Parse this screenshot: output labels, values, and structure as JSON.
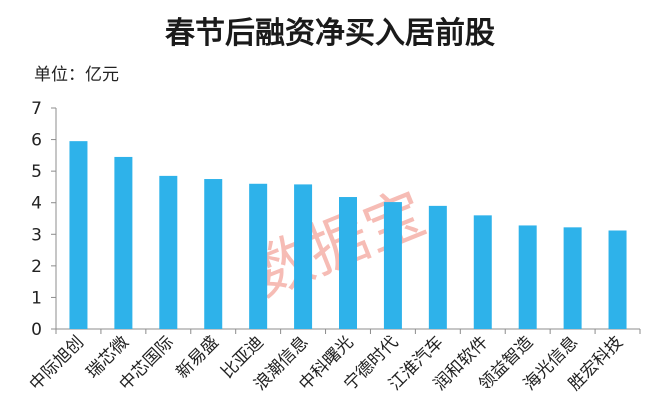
{
  "title": "春节后融资净买入居前股",
  "unit_label": "单位：亿元",
  "watermark": "数据宝",
  "colors": {
    "bar": "#2EB2EA",
    "axis": "#8c8c8c"
  },
  "chart_data": {
    "type": "bar",
    "title": "春节后融资净买入居前股",
    "ylabel": "单位：亿元",
    "xlabel": "",
    "ylim": [
      0,
      7
    ],
    "yticks": [
      0,
      1,
      2,
      3,
      4,
      5,
      6,
      7
    ],
    "grid": false,
    "categories": [
      "中际旭创",
      "瑞芯微",
      "中芯国际",
      "新易盛",
      "比亚迪",
      "浪潮信息",
      "中科曙光",
      "宁德时代",
      "江淮汽车",
      "润和软件",
      "领益智造",
      "海光信息",
      "胜宏科技"
    ],
    "values": [
      5.95,
      5.45,
      4.85,
      4.75,
      4.6,
      4.58,
      4.18,
      4.02,
      3.9,
      3.6,
      3.28,
      3.22,
      3.12
    ]
  }
}
